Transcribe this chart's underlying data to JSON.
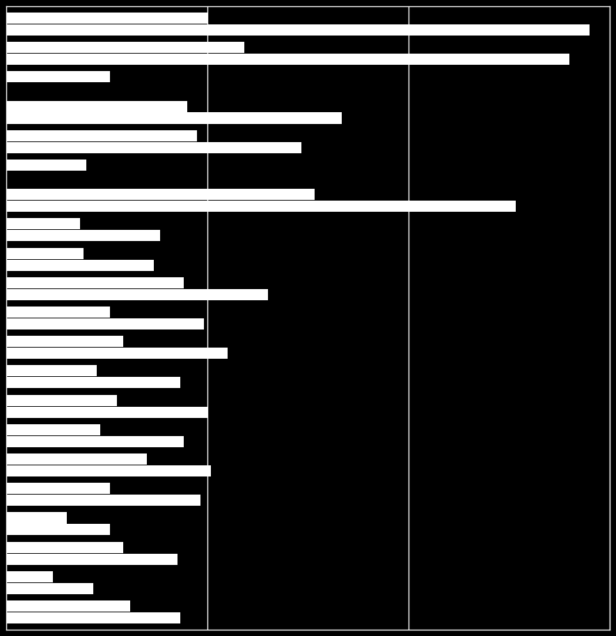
{
  "background_color": "#000000",
  "bar_color": "#ffffff",
  "grid_color": "#ffffff",
  "categories_count": 21,
  "bar1_vals": [
    300,
    355,
    155,
    270,
    285,
    120,
    460,
    110,
    115,
    265,
    155,
    175,
    135,
    165,
    140,
    210,
    155,
    90,
    175,
    70,
    185
  ],
  "bar2_vals": [
    870,
    840,
    0,
    500,
    440,
    0,
    760,
    230,
    220,
    390,
    295,
    330,
    260,
    300,
    265,
    305,
    290,
    155,
    255,
    130,
    260
  ],
  "xlim": 900,
  "xtick_positions": [
    300,
    600,
    900
  ],
  "bar_height": 0.38,
  "figsize": [
    8.85,
    9.13
  ],
  "dpi": 100
}
